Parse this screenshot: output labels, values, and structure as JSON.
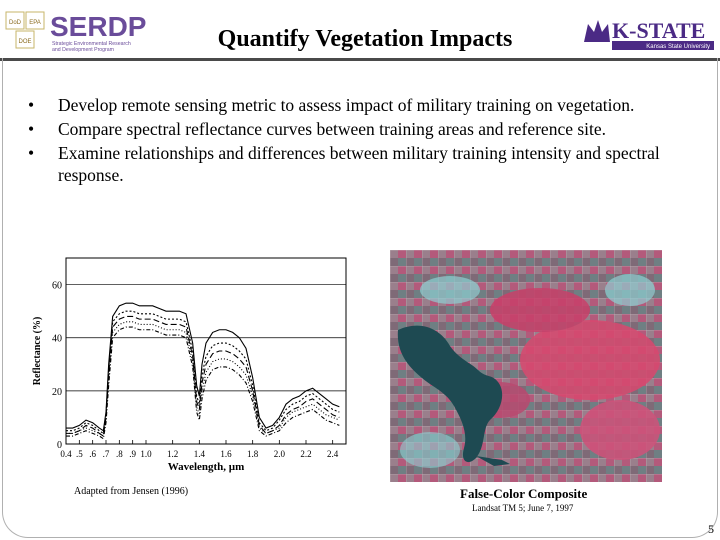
{
  "header": {
    "title": "Quantify Vegetation Impacts",
    "left_logo": {
      "boxes": [
        "DoD",
        "EPA",
        "DOE"
      ],
      "name": "SERDP",
      "line1": "Strategic Environmental Research",
      "line2": "and Development Program"
    },
    "right_logo": {
      "name": "K-STATE",
      "sub": "Kansas State University"
    }
  },
  "bullets": [
    "Develop remote sensing metric to assess impact of military training on vegetation.",
    "Compare spectral reflectance curves between training areas and reference site.",
    "Examine relationships and differences between military training intensity and spectral response."
  ],
  "bullet_glyph": "•",
  "chart_data": {
    "type": "line",
    "xlabel": "Wavelength, µm",
    "ylabel": "Reflectance (%)",
    "xlim": [
      0.4,
      2.5
    ],
    "ylim": [
      0,
      70
    ],
    "x_ticks": [
      0.4,
      0.5,
      0.6,
      0.7,
      0.8,
      0.9,
      1.0,
      1.2,
      1.4,
      1.6,
      1.8,
      2.0,
      2.2,
      2.4
    ],
    "x_tick_labels": [
      "0.4",
      ".5",
      ".6",
      ".7",
      ".8",
      ".9",
      "1.0",
      "1.2",
      "1.4",
      "1.6",
      "1.8",
      "2.0",
      "2.2",
      "2.4"
    ],
    "y_ticks": [
      0,
      20,
      40,
      60
    ],
    "y_tick_labels": [
      "0",
      "20",
      "40",
      "60"
    ],
    "gridlines_y": [
      20,
      40,
      60
    ],
    "x": [
      0.4,
      0.45,
      0.5,
      0.55,
      0.6,
      0.65,
      0.68,
      0.7,
      0.72,
      0.75,
      0.8,
      0.85,
      0.9,
      0.95,
      1.0,
      1.05,
      1.1,
      1.15,
      1.2,
      1.25,
      1.3,
      1.35,
      1.38,
      1.4,
      1.42,
      1.45,
      1.5,
      1.55,
      1.6,
      1.65,
      1.7,
      1.75,
      1.8,
      1.85,
      1.9,
      1.95,
      2.0,
      2.05,
      2.1,
      2.15,
      2.2,
      2.25,
      2.3,
      2.35,
      2.4,
      2.45
    ],
    "series": [
      {
        "values": [
          6,
          6,
          7,
          9,
          8,
          6,
          5,
          12,
          30,
          48,
          52,
          53,
          53,
          52,
          52,
          52,
          51,
          50,
          50,
          50,
          49,
          38,
          22,
          18,
          30,
          38,
          42,
          43,
          43,
          42,
          40,
          36,
          25,
          10,
          6,
          7,
          10,
          15,
          17,
          18,
          20,
          21,
          19,
          17,
          15,
          14
        ]
      },
      {
        "values": [
          5,
          5,
          6,
          8,
          7,
          5,
          4,
          11,
          28,
          46,
          49,
          50,
          50,
          49,
          49,
          49,
          48,
          47,
          47,
          47,
          46,
          35,
          18,
          15,
          26,
          33,
          37,
          38,
          38,
          37,
          35,
          32,
          22,
          8,
          5,
          6,
          9,
          13,
          15,
          16,
          18,
          19,
          17,
          15,
          13,
          12
        ]
      },
      {
        "values": [
          4,
          4,
          5,
          7,
          6,
          4,
          3,
          10,
          26,
          44,
          47,
          48,
          48,
          47,
          47,
          47,
          46,
          45,
          45,
          45,
          44,
          33,
          16,
          13,
          23,
          30,
          34,
          35,
          35,
          34,
          32,
          29,
          20,
          7,
          4,
          5,
          7,
          11,
          13,
          14,
          16,
          17,
          15,
          13,
          11,
          10
        ]
      },
      {
        "values": [
          4,
          4,
          5,
          6,
          5,
          4,
          3,
          9,
          24,
          42,
          45,
          46,
          46,
          45,
          45,
          45,
          44,
          43,
          43,
          43,
          42,
          31,
          14,
          11,
          20,
          27,
          31,
          32,
          32,
          31,
          29,
          26,
          18,
          6,
          4,
          5,
          6,
          10,
          12,
          13,
          14,
          15,
          13,
          11,
          10,
          9
        ]
      },
      {
        "values": [
          3,
          3,
          4,
          5,
          4,
          3,
          2,
          8,
          22,
          40,
          43,
          44,
          44,
          43,
          43,
          43,
          42,
          41,
          41,
          41,
          40,
          29,
          12,
          9,
          17,
          24,
          28,
          29,
          29,
          28,
          26,
          23,
          16,
          5,
          3,
          4,
          5,
          8,
          10,
          11,
          12,
          13,
          11,
          9,
          8,
          7
        ]
      }
    ]
  },
  "captions": {
    "chart_source": "Adapted from Jensen (1996)",
    "photo_title": "False-Color Composite",
    "photo_sub": "Landsat TM 5; June 7, 1997"
  },
  "page_number": "5",
  "colors": {
    "serdp_purple": "#6a4c9a",
    "kstate_purple": "#4b2a85",
    "water": "#1e4a52",
    "vegetation_red": "#d9486f",
    "field_cyan": "#8fd2d4"
  }
}
